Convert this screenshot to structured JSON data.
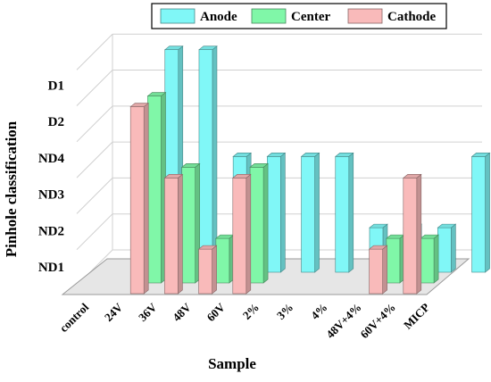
{
  "chart_data": {
    "type": "bar",
    "title": "",
    "xlabel": "Sample",
    "ylabel": "Pinhole classification",
    "y_levels": [
      "ND1",
      "ND2",
      "ND3",
      "ND4",
      "D2",
      "D1"
    ],
    "categories": [
      "control",
      "24V",
      "36V",
      "48V",
      "60V",
      "2%",
      "3%",
      "4%",
      "48V+4%",
      "60V+4%",
      "MICP"
    ],
    "series": [
      {
        "name": "Anode",
        "color": "#80f7f7",
        "values": [
          0,
          6,
          6,
          3,
          3,
          3,
          3,
          1,
          1,
          1,
          3
        ]
      },
      {
        "name": "Center",
        "color": "#80f7a8",
        "values": [
          0,
          5,
          3,
          1,
          3,
          0,
          0,
          0,
          1,
          1,
          0
        ]
      },
      {
        "name": "Cathode",
        "color": "#f9baba",
        "values": [
          0,
          5,
          3,
          1,
          3,
          0,
          0,
          0,
          1,
          3,
          0
        ]
      }
    ],
    "legend": "top",
    "grid": true,
    "ylim": [
      0,
      6
    ]
  }
}
